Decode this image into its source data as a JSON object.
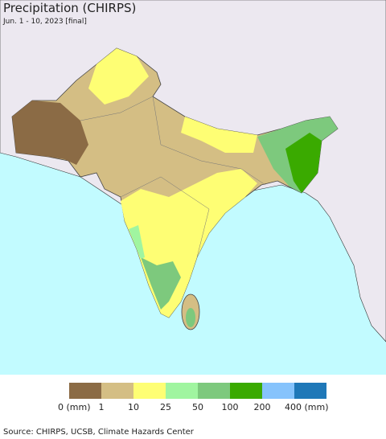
{
  "header": {
    "title": "Precipitation (CHIRPS)",
    "subtitle": "Jun. 1 - 10, 2023 [final]"
  },
  "legend": {
    "labels": [
      "0 (mm)",
      "1",
      "10",
      "25",
      "50",
      "100",
      "200",
      "400 (mm)"
    ],
    "colors": [
      "#8b6b45",
      "#d4be84",
      "#fefe74",
      "#a0f5a0",
      "#7dc97d",
      "#3aaa00",
      "#86c3fc",
      "#1f78b8"
    ]
  },
  "footer": {
    "source": "Source: CHIRPS, UCSB, Climate Hazards Center"
  }
}
